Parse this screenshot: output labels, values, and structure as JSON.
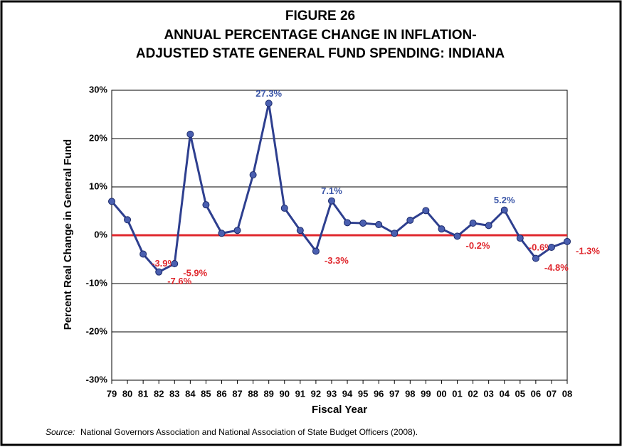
{
  "chart_data": {
    "type": "line",
    "title": [
      "FIGURE 26",
      "ANNUAL PERCENTAGE CHANGE IN INFLATION-",
      "ADJUSTED STATE GENERAL FUND SPENDING: INDIANA"
    ],
    "x_label": "Fiscal Year",
    "y_label": "Percent Real Change in General Fund",
    "categories": [
      "79",
      "80",
      "81",
      "82",
      "83",
      "84",
      "85",
      "86",
      "87",
      "88",
      "89",
      "90",
      "91",
      "92",
      "93",
      "94",
      "95",
      "96",
      "97",
      "98",
      "99",
      "00",
      "01",
      "02",
      "03",
      "04",
      "05",
      "06",
      "07",
      "08"
    ],
    "series": [
      {
        "name": "Indiana",
        "color": "#2e3f8f",
        "values": [
          7.0,
          3.2,
          -3.9,
          -7.6,
          -5.9,
          20.9,
          6.3,
          0.4,
          1.0,
          12.5,
          27.3,
          5.6,
          1.0,
          -3.3,
          7.1,
          2.6,
          2.5,
          2.2,
          0.4,
          3.1,
          5.1,
          1.3,
          -0.2,
          2.5,
          2.0,
          5.2,
          -0.6,
          -4.8,
          -2.5,
          -1.3
        ],
        "value_labels": [
          null,
          null,
          "-3.9%",
          "-7.6%",
          "-5.9%",
          null,
          null,
          null,
          null,
          null,
          "27.3%",
          null,
          null,
          "-3.3%",
          "7.1%",
          null,
          null,
          null,
          null,
          null,
          null,
          null,
          "-0.2%",
          null,
          null,
          "5.2%",
          "-0.6%",
          "-4.8%",
          null,
          "-1.3%"
        ]
      }
    ],
    "positive_label_color": "#3b56a8",
    "negative_label_color": "#e0282e",
    "zero_line_color": "#e0282e",
    "ylim": [
      -30,
      30
    ],
    "yticks": [
      {
        "value": -30,
        "label": "-30%"
      },
      {
        "value": -20,
        "label": "-20%"
      },
      {
        "value": -10,
        "label": "-10%"
      },
      {
        "value": 0,
        "label": "0%"
      },
      {
        "value": 10,
        "label": "10%"
      },
      {
        "value": 20,
        "label": "20%"
      },
      {
        "value": 30,
        "label": "30%"
      }
    ],
    "grid": true,
    "source_label": "Source:",
    "source": "National Governors Association and National Association of State Budget Officers (2008)."
  }
}
